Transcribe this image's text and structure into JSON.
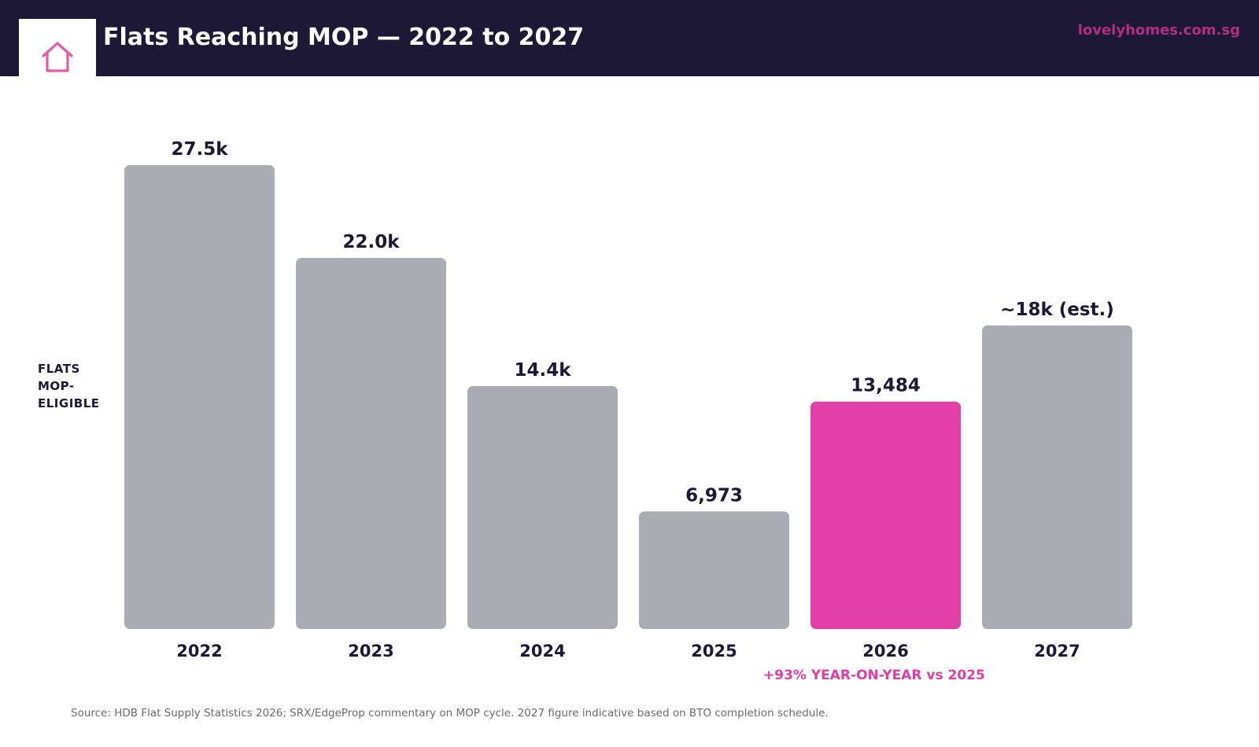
{
  "header": {
    "title": "Flats Reaching MOP — 2022 to 2027",
    "brand": "lovelyhomes.com.sg",
    "logo_icon": "house-icon"
  },
  "chart_data": {
    "type": "bar",
    "title": "Flats Reaching MOP — 2022 to 2027",
    "ylabel": "FLATS MOP-ELIGIBLE",
    "ylabel_lines": [
      "FLATS",
      "MOP-",
      "ELIGIBLE"
    ],
    "categories": [
      "2022",
      "2023",
      "2024",
      "2025",
      "2026",
      "2027"
    ],
    "values": [
      27500,
      22000,
      14400,
      6973,
      13484,
      18000
    ],
    "data_labels": [
      "27.5k",
      "22.0k",
      "14.4k",
      "6,973",
      "13,484",
      "~18k (est.)"
    ],
    "highlight_index": 4,
    "ylim": [
      0,
      27500
    ],
    "grid": false,
    "colors": {
      "bar": "#aaabb3",
      "highlight": "#e33fa8",
      "label": "#1d1836"
    },
    "annotation": "+93% YEAR-ON-YEAR vs 2025"
  },
  "footer": {
    "source": "Source: HDB Flat Supply Statistics 2026; SRX/EdgeProp commentary on MOP cycle. 2027 figure indicative based on BTO completion schedule."
  }
}
